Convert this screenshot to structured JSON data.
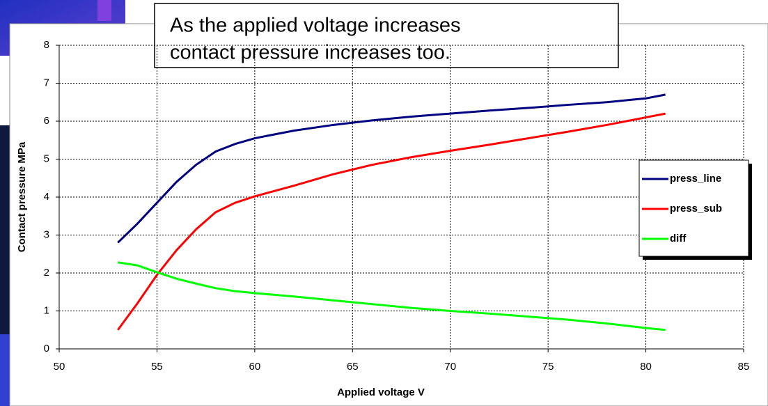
{
  "chart_data": {
    "type": "line",
    "annotation": [
      "As the applied voltage increases",
      "contact pressure increases too."
    ],
    "x_label": "Applied voltage V",
    "y_label": "Contact pressure MPa",
    "x": [
      53,
      54,
      55,
      56,
      57,
      58,
      59,
      60,
      62,
      64,
      66,
      68,
      70,
      72,
      74,
      76,
      78,
      80,
      81
    ],
    "series": [
      {
        "name": "press_line",
        "color": "#000080",
        "values": [
          2.8,
          3.3,
          3.85,
          4.4,
          4.85,
          5.2,
          5.4,
          5.55,
          5.75,
          5.9,
          6.02,
          6.12,
          6.2,
          6.28,
          6.35,
          6.43,
          6.5,
          6.6,
          6.7
        ]
      },
      {
        "name": "press_sub",
        "color": "#ff0000",
        "values": [
          0.5,
          1.2,
          1.95,
          2.6,
          3.15,
          3.6,
          3.85,
          4.02,
          4.3,
          4.6,
          4.85,
          5.05,
          5.22,
          5.38,
          5.55,
          5.72,
          5.9,
          6.1,
          6.2
        ]
      },
      {
        "name": "diff",
        "color": "#00ff00",
        "values": [
          2.28,
          2.2,
          2.02,
          1.85,
          1.72,
          1.6,
          1.52,
          1.47,
          1.38,
          1.28,
          1.18,
          1.08,
          1.0,
          0.93,
          0.85,
          0.77,
          0.67,
          0.55,
          0.5
        ]
      }
    ],
    "xlim": [
      50,
      85
    ],
    "xticks": [
      50,
      55,
      60,
      65,
      70,
      75,
      80,
      85
    ],
    "ylim": [
      0,
      8
    ],
    "yticks": [
      0,
      1,
      2,
      3,
      4,
      5,
      6,
      7,
      8
    ],
    "grid": true,
    "legend": "right"
  }
}
